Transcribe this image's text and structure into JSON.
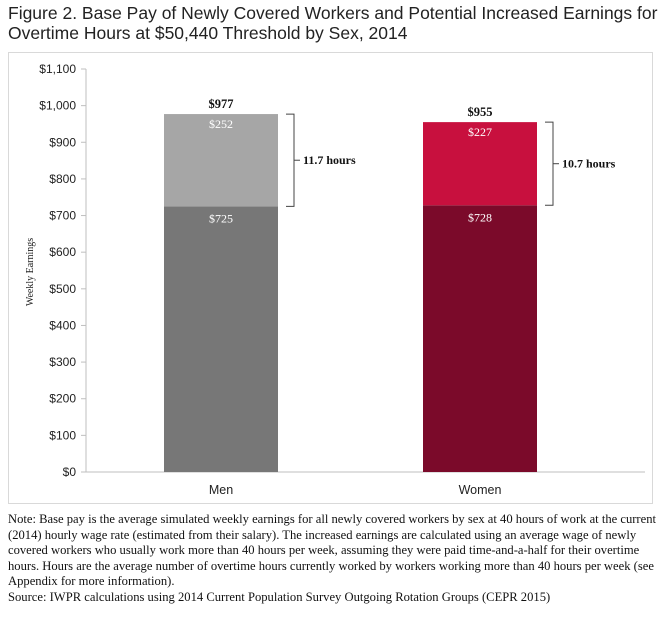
{
  "title": "Figure 2. Base Pay of Newly Covered Workers and Potential Increased Earnings for Overtime Hours at $50,440 Threshold by Sex, 2014",
  "note": "Note: Base pay is the average simulated weekly earnings for all newly covered workers by sex at 40 hours of work at the current (2014) hourly wage rate (estimated from their salary). The increased earnings are calculated using an average wage of newly covered workers who usually work more than 40 hours per week, assuming they were paid time-and-a-half for their overtime hours. Hours are the average number of overtime hours currently worked by workers working more than 40 hours per week (see Appendix for more information).",
  "source": "Source: IWPR calculations using 2014 Current Population Survey Outgoing Rotation Groups (CEPR 2015)",
  "chart_data": {
    "type": "bar",
    "stacked": true,
    "categories": [
      "Men",
      "Women"
    ],
    "base_pay": [
      725,
      728
    ],
    "overtime_increase": [
      252,
      227
    ],
    "totals": [
      977,
      955
    ],
    "base_labels": [
      "$725",
      "$728"
    ],
    "increase_labels": [
      "$252",
      "$227"
    ],
    "total_labels": [
      "$977",
      "$955"
    ],
    "hours_labels": [
      "11.7 hours",
      "10.7 hours"
    ],
    "ylabel": "Weekly Earnings",
    "ylim": [
      0,
      1100
    ],
    "yticks": [
      0,
      100,
      200,
      300,
      400,
      500,
      600,
      700,
      800,
      900,
      1000,
      1100
    ],
    "ytick_labels": [
      "$0",
      "$100",
      "$200",
      "$300",
      "$400",
      "$500",
      "$600",
      "$700",
      "$800",
      "$900",
      "$1,000",
      "$1,100"
    ],
    "grid": false,
    "colors": {
      "men_base": "#777777",
      "men_increase": "#a6a6a6",
      "women_base": "#7b0a2a",
      "women_increase": "#c8103e"
    }
  }
}
